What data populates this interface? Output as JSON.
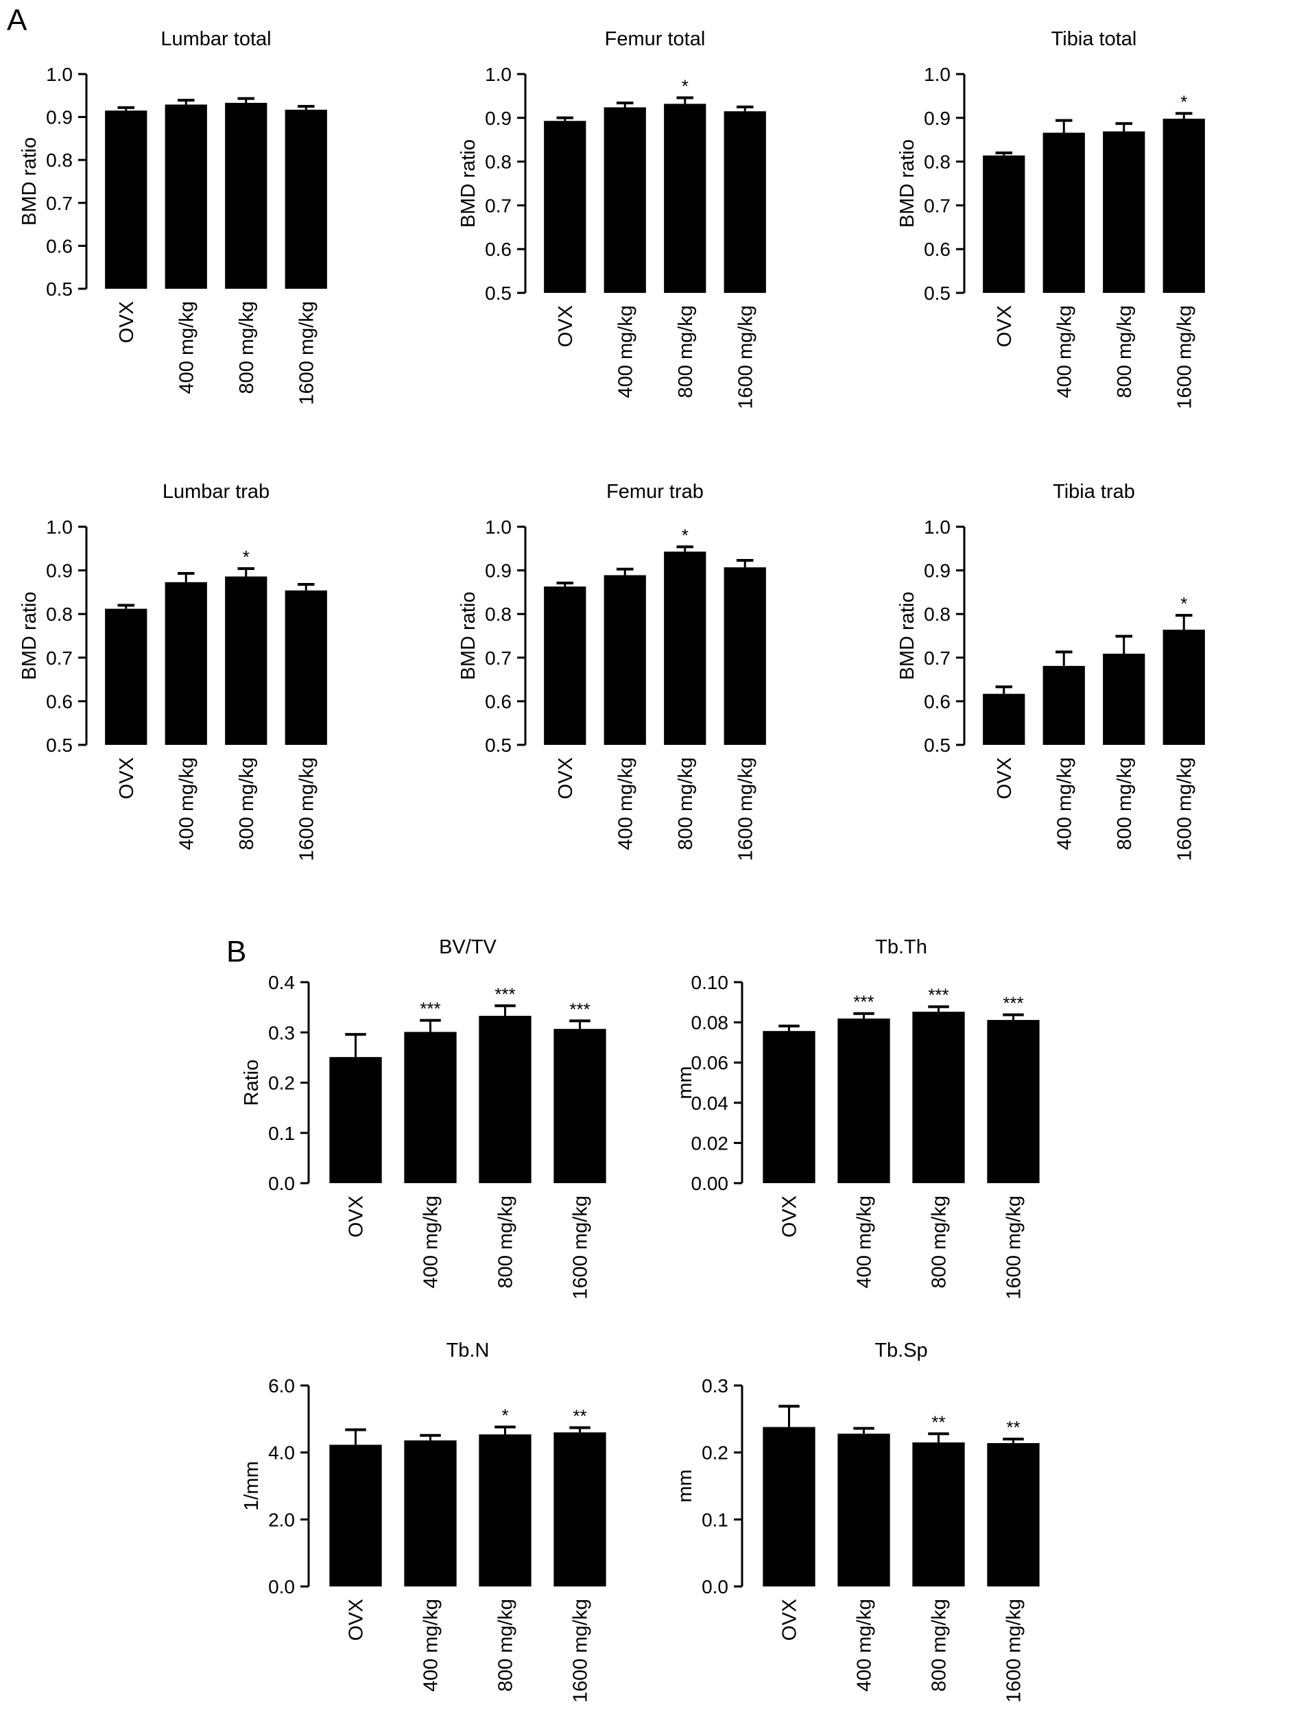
{
  "panel_labels": [
    "A",
    "B"
  ],
  "chart_data": [
    {
      "type": "bar",
      "title": "Lumbar total",
      "ylabel": "BMD ratio",
      "categories": [
        "OVX",
        "400 mg/kg",
        "800 mg/kg",
        "1600 mg/kg"
      ],
      "values": [
        0.915,
        0.929,
        0.933,
        0.917
      ],
      "errors": [
        0.007,
        0.01,
        0.01,
        0.008
      ],
      "significance": [
        "",
        "",
        "",
        ""
      ],
      "ylim": [
        0.5,
        1.0
      ],
      "yticks": [
        0.5,
        0.6,
        0.7,
        0.8,
        0.9,
        1.0
      ],
      "ytick_labels": [
        "0.5",
        "0.6",
        "0.7",
        "0.8",
        "0.9",
        "1.0"
      ],
      "bar_color": "#000000",
      "grid": false
    },
    {
      "type": "bar",
      "title": "Femur total",
      "ylabel": "BMD ratio",
      "categories": [
        "OVX",
        "400 mg/kg",
        "800 mg/kg",
        "1600 mg/kg"
      ],
      "values": [
        0.893,
        0.924,
        0.932,
        0.915
      ],
      "errors": [
        0.007,
        0.01,
        0.014,
        0.01
      ],
      "significance": [
        "",
        "",
        "*",
        ""
      ],
      "ylim": [
        0.5,
        1.0
      ],
      "yticks": [
        0.5,
        0.6,
        0.7,
        0.8,
        0.9,
        1.0
      ],
      "ytick_labels": [
        "0.5",
        "0.6",
        "0.7",
        "0.8",
        "0.9",
        "1.0"
      ],
      "bar_color": "#000000",
      "grid": false
    },
    {
      "type": "bar",
      "title": "Tibia total",
      "ylabel": "BMD ratio",
      "categories": [
        "OVX",
        "400 mg/kg",
        "800 mg/kg",
        "1600 mg/kg"
      ],
      "values": [
        0.814,
        0.866,
        0.869,
        0.898
      ],
      "errors": [
        0.006,
        0.028,
        0.018,
        0.012
      ],
      "significance": [
        "",
        "",
        "",
        "*"
      ],
      "ylim": [
        0.5,
        1.0
      ],
      "yticks": [
        0.5,
        0.6,
        0.7,
        0.8,
        0.9,
        1.0
      ],
      "ytick_labels": [
        "0.5",
        "0.6",
        "0.7",
        "0.8",
        "0.9",
        "1.0"
      ],
      "bar_color": "#000000",
      "grid": false
    },
    {
      "type": "bar",
      "title": "Lumbar trab",
      "ylabel": "BMD ratio",
      "categories": [
        "OVX",
        "400 mg/kg",
        "800 mg/kg",
        "1600 mg/kg"
      ],
      "values": [
        0.812,
        0.873,
        0.886,
        0.854
      ],
      "errors": [
        0.008,
        0.02,
        0.018,
        0.014
      ],
      "significance": [
        "",
        "",
        "*",
        ""
      ],
      "ylim": [
        0.5,
        1.0
      ],
      "yticks": [
        0.5,
        0.6,
        0.7,
        0.8,
        0.9,
        1.0
      ],
      "ytick_labels": [
        "0.5",
        "0.6",
        "0.7",
        "0.8",
        "0.9",
        "1.0"
      ],
      "bar_color": "#000000",
      "grid": false
    },
    {
      "type": "bar",
      "title": "Femur trab",
      "ylabel": "BMD ratio",
      "categories": [
        "OVX",
        "400 mg/kg",
        "800 mg/kg",
        "1600 mg/kg"
      ],
      "values": [
        0.863,
        0.889,
        0.943,
        0.907
      ],
      "errors": [
        0.008,
        0.014,
        0.011,
        0.016
      ],
      "significance": [
        "",
        "",
        "*",
        ""
      ],
      "ylim": [
        0.5,
        1.0
      ],
      "yticks": [
        0.5,
        0.6,
        0.7,
        0.8,
        0.9,
        1.0
      ],
      "ytick_labels": [
        "0.5",
        "0.6",
        "0.7",
        "0.8",
        "0.9",
        "1.0"
      ],
      "bar_color": "#000000",
      "grid": false
    },
    {
      "type": "bar",
      "title": "Tibia trab",
      "ylabel": "BMD ratio",
      "categories": [
        "OVX",
        "400 mg/kg",
        "800 mg/kg",
        "1600 mg/kg"
      ],
      "values": [
        0.617,
        0.681,
        0.709,
        0.764
      ],
      "errors": [
        0.016,
        0.032,
        0.04,
        0.033
      ],
      "significance": [
        "",
        "",
        "",
        "*"
      ],
      "ylim": [
        0.5,
        1.0
      ],
      "yticks": [
        0.5,
        0.6,
        0.7,
        0.8,
        0.9,
        1.0
      ],
      "ytick_labels": [
        "0.5",
        "0.6",
        "0.7",
        "0.8",
        "0.9",
        "1.0"
      ],
      "bar_color": "#000000",
      "grid": false
    },
    {
      "type": "bar",
      "title": "BV/TV",
      "ylabel": "Ratio",
      "categories": [
        "OVX",
        "400 mg/kg",
        "800 mg/kg",
        "1600 mg/kg"
      ],
      "values": [
        0.251,
        0.301,
        0.333,
        0.307
      ],
      "errors": [
        0.045,
        0.023,
        0.02,
        0.016
      ],
      "significance": [
        "",
        "***",
        "***",
        "***"
      ],
      "ylim": [
        0.0,
        0.4
      ],
      "yticks": [
        0.0,
        0.1,
        0.2,
        0.3,
        0.4
      ],
      "ytick_labels": [
        "0.0",
        "0.1",
        "0.2",
        "0.3",
        "0.4"
      ],
      "bar_color": "#000000",
      "grid": false
    },
    {
      "type": "bar",
      "title": "Tb.Th",
      "ylabel": "mm",
      "categories": [
        "OVX",
        "400 mg/kg",
        "800 mg/kg",
        "1600 mg/kg"
      ],
      "values": [
        0.0757,
        0.0819,
        0.0853,
        0.0812
      ],
      "errors": [
        0.0025,
        0.0025,
        0.0025,
        0.0026
      ],
      "significance": [
        "",
        "***",
        "***",
        "***"
      ],
      "ylim": [
        0.0,
        0.1
      ],
      "yticks": [
        0.0,
        0.02,
        0.04,
        0.06,
        0.08,
        0.1
      ],
      "ytick_labels": [
        "0.00",
        "0.02",
        "0.04",
        "0.06",
        "0.08",
        "0.10"
      ],
      "bar_color": "#000000",
      "grid": false
    },
    {
      "type": "bar",
      "title": "Tb.N",
      "ylabel": "1/mm",
      "categories": [
        "OVX",
        "400 mg/kg",
        "800 mg/kg",
        "1600 mg/kg"
      ],
      "values": [
        4.23,
        4.36,
        4.54,
        4.6
      ],
      "errors": [
        0.45,
        0.15,
        0.22,
        0.14
      ],
      "significance": [
        "",
        "",
        "*",
        "**"
      ],
      "ylim": [
        0.0,
        6.0
      ],
      "yticks": [
        0.0,
        2.0,
        4.0,
        6.0
      ],
      "ytick_labels": [
        "0.0",
        "2.0",
        "4.0",
        "6.0"
      ],
      "bar_color": "#000000",
      "grid": false
    },
    {
      "type": "bar",
      "title": "Tb.Sp",
      "ylabel": "mm",
      "categories": [
        "OVX",
        "400 mg/kg",
        "800 mg/kg",
        "1600 mg/kg"
      ],
      "values": [
        0.238,
        0.228,
        0.215,
        0.214
      ],
      "errors": [
        0.031,
        0.008,
        0.013,
        0.006
      ],
      "significance": [
        "",
        "",
        "**",
        "**"
      ],
      "ylim": [
        0.0,
        0.3
      ],
      "yticks": [
        0.0,
        0.1,
        0.2,
        0.3
      ],
      "ytick_labels": [
        "0.0",
        "0.1",
        "0.2",
        "0.3"
      ],
      "bar_color": "#000000",
      "grid": false
    }
  ]
}
